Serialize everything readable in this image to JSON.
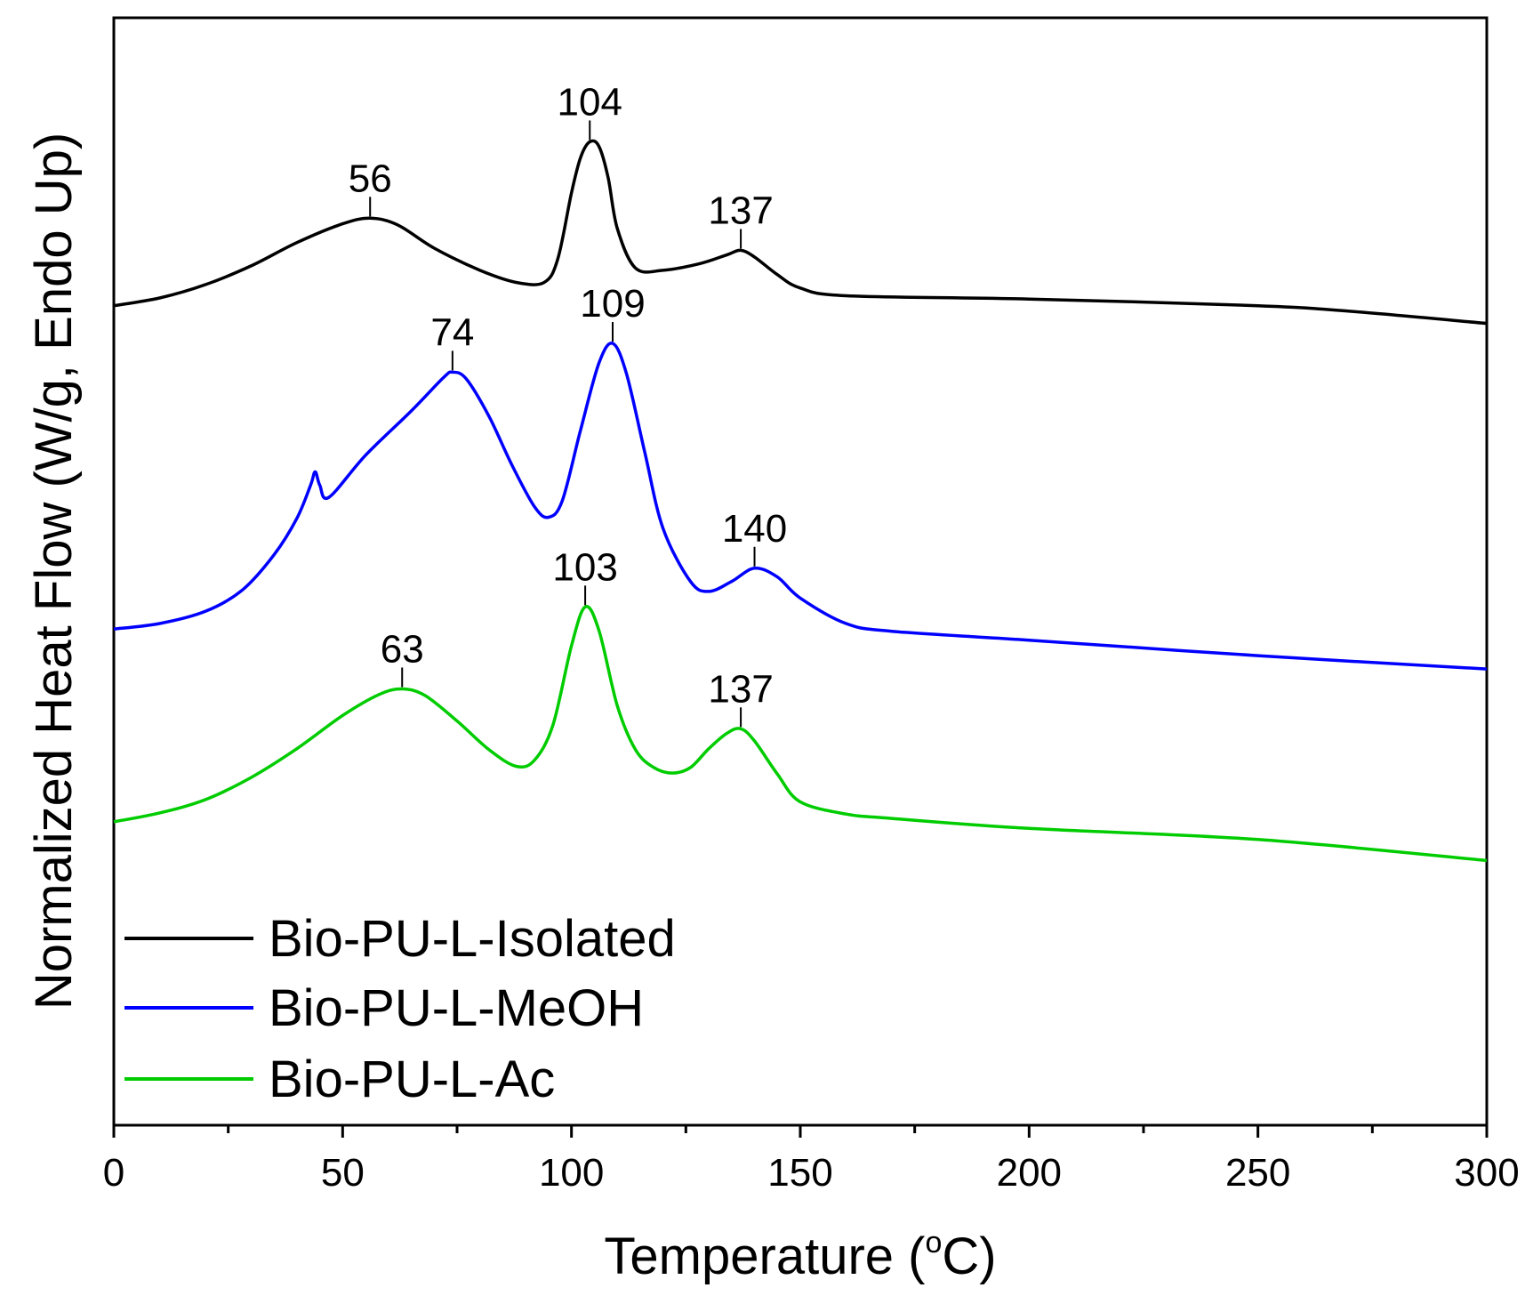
{
  "chart_data": {
    "type": "line",
    "title": "",
    "xlabel": "Temperature (°C)",
    "xlabel_prefix": "Temperature (",
    "xlabel_degree": "o",
    "xlabel_suffix": "C)",
    "ylabel": "Normalized Heat Flow (W/g, Endo Up)",
    "xlim": [
      0,
      300
    ],
    "ylim": [
      0,
      100
    ],
    "x_ticks": [
      0,
      50,
      100,
      150,
      200,
      250,
      300
    ],
    "x_ticks_labels": [
      "0",
      "50",
      "100",
      "150",
      "200",
      "250",
      "300"
    ],
    "y_ticks_shown": false,
    "legend_position": "bottom-left",
    "series": [
      {
        "name": "Bio-PU-L-Isolated",
        "color": "#000000",
        "x": [
          0,
          10,
          20,
          30,
          40,
          50,
          56,
          62,
          70,
          80,
          88,
          94,
          97,
          100,
          102,
          104,
          106,
          108,
          110,
          114,
          120,
          128,
          134,
          137,
          140,
          145,
          150,
          160,
          200,
          250,
          270,
          300
        ],
        "y": [
          74.0,
          74.7,
          75.9,
          77.6,
          79.7,
          81.4,
          81.9,
          81.3,
          79.2,
          77.2,
          76.1,
          76.1,
          78.2,
          84.2,
          87.4,
          88.8,
          88.4,
          85.6,
          81.0,
          77.4,
          77.2,
          77.8,
          78.6,
          79.0,
          78.4,
          76.8,
          75.6,
          74.9,
          74.6,
          74.0,
          73.5,
          72.4
        ]
      },
      {
        "name": "Bio-PU-L-MeOH",
        "color": "#0000ff",
        "x": [
          0,
          10,
          20,
          28,
          35,
          40,
          43,
          44,
          45,
          47,
          55,
          65,
          72,
          74,
          77,
          82,
          87,
          92,
          95,
          98,
          102,
          106,
          109,
          112,
          116,
          120,
          126,
          130,
          135,
          140,
          145,
          150,
          160,
          170,
          200,
          250,
          300
        ],
        "y": [
          44.8,
          45.3,
          46.4,
          48.3,
          51.5,
          54.8,
          57.8,
          59.0,
          57.8,
          56.7,
          60.5,
          64.5,
          67.5,
          68.0,
          67.4,
          64.0,
          59.6,
          55.8,
          54.9,
          56.4,
          62.8,
          68.8,
          70.6,
          67.9,
          60.8,
          53.9,
          49.1,
          48.2,
          49.1,
          50.3,
          49.5,
          47.6,
          45.3,
          44.6,
          43.8,
          42.4,
          41.2
        ]
      },
      {
        "name": "Bio-PU-L-Ac",
        "color": "#00cc00",
        "x": [
          0,
          10,
          20,
          30,
          40,
          50,
          58,
          63,
          68,
          75,
          82,
          88,
          92,
          96,
          100,
          103,
          106,
          110,
          114,
          118,
          122,
          126,
          130,
          134,
          137,
          140,
          145,
          150,
          160,
          170,
          200,
          250,
          300
        ],
        "y": [
          27.4,
          28.2,
          29.4,
          31.4,
          34.0,
          37.0,
          38.9,
          39.4,
          38.8,
          36.5,
          33.9,
          32.4,
          33.0,
          36.2,
          43.3,
          46.8,
          44.7,
          37.9,
          33.9,
          32.3,
          31.8,
          32.3,
          34.0,
          35.4,
          35.8,
          34.7,
          31.7,
          29.2,
          28.1,
          27.7,
          26.8,
          25.8,
          23.9
        ]
      }
    ],
    "annotations": [
      {
        "series": 0,
        "x": 56,
        "y": 81.9,
        "text": "56"
      },
      {
        "series": 0,
        "x": 104,
        "y": 88.8,
        "text": "104"
      },
      {
        "series": 0,
        "x": 137,
        "y": 79.0,
        "text": "137"
      },
      {
        "series": 1,
        "x": 74,
        "y": 68.0,
        "text": "74"
      },
      {
        "series": 1,
        "x": 109,
        "y": 70.6,
        "text": "109"
      },
      {
        "series": 1,
        "x": 140,
        "y": 50.3,
        "text": "140"
      },
      {
        "series": 2,
        "x": 63,
        "y": 39.4,
        "text": "63"
      },
      {
        "series": 2,
        "x": 103,
        "y": 46.8,
        "text": "103"
      },
      {
        "series": 2,
        "x": 137,
        "y": 35.8,
        "text": "137"
      }
    ]
  }
}
